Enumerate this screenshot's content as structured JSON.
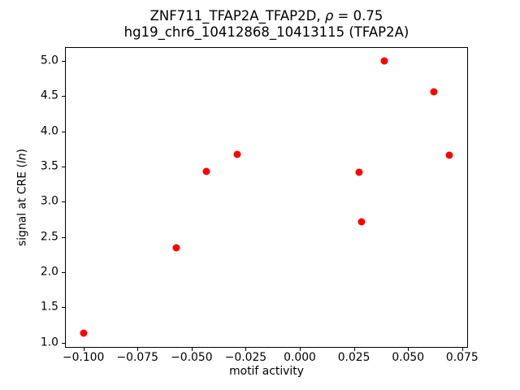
{
  "figure": {
    "background": "#ffffff",
    "title_line1": {
      "prefix": "ZNF711_TFAP2A_TFAP2D, ",
      "rho": "ρ",
      "suffix": " = 0.75"
    },
    "title_line2": "hg19_chr6_10412868_10413115 (TFAP2A)",
    "xlabel": "motif activity",
    "ylabel": {
      "prefix": "signal at CRE (",
      "italic": "ln",
      "suffix": ")"
    }
  },
  "chart_data": {
    "type": "scatter",
    "title": "ZNF711_TFAP2A_TFAP2D, ρ = 0.75",
    "subtitle": "hg19_chr6_10412868_10413115 (TFAP2A)",
    "xlabel": "motif activity",
    "ylabel": "signal at CRE (ln)",
    "correlation_rho": 0.75,
    "marker_color": "#ff0000",
    "marker_size_px": 9,
    "axis_color": "#000000",
    "grid": false,
    "legend_position": "none",
    "xlim": [
      -0.1085,
      0.0777
    ],
    "ylim": [
      0.927,
      5.196
    ],
    "x_ticks": [
      -0.1,
      -0.075,
      -0.05,
      -0.025,
      0.0,
      0.025,
      0.05,
      0.075
    ],
    "x_tick_labels": [
      "−0.100",
      "−0.075",
      "−0.050",
      "−0.025",
      "0.000",
      "0.025",
      "0.050",
      "0.075"
    ],
    "y_ticks": [
      1.0,
      1.5,
      2.0,
      2.5,
      3.0,
      3.5,
      4.0,
      4.5,
      5.0
    ],
    "y_tick_labels": [
      "1.0",
      "1.5",
      "2.0",
      "2.5",
      "3.0",
      "3.5",
      "4.0",
      "4.5",
      "5.0"
    ],
    "points": [
      {
        "x": -0.1,
        "y": 1.14
      },
      {
        "x": -0.057,
        "y": 2.35
      },
      {
        "x": -0.043,
        "y": 3.43
      },
      {
        "x": -0.029,
        "y": 3.67
      },
      {
        "x": 0.0275,
        "y": 3.42
      },
      {
        "x": 0.0285,
        "y": 2.71
      },
      {
        "x": 0.039,
        "y": 5.0
      },
      {
        "x": 0.062,
        "y": 4.56
      },
      {
        "x": 0.069,
        "y": 3.66
      }
    ]
  }
}
